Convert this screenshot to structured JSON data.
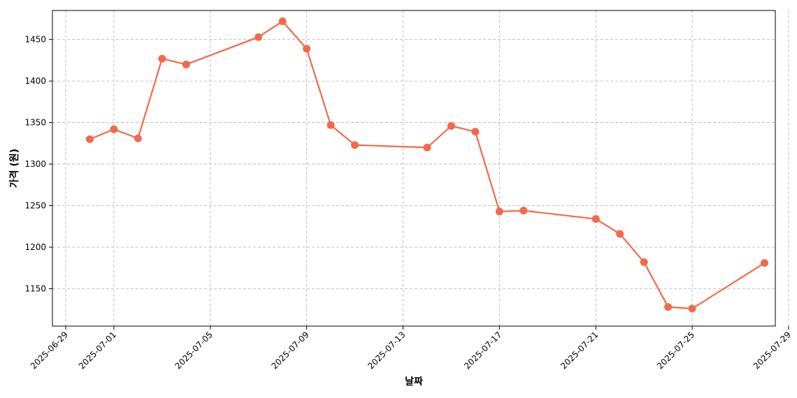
{
  "chart_data": {
    "type": "line",
    "xlabel": "날짜",
    "ylabel": "가격 (원)",
    "x_axis_type": "date",
    "xlim": [
      "2025-06-28",
      "2025-07-29"
    ],
    "ylim": [
      1105,
      1485
    ],
    "x_ticks": [
      "2025-06-29",
      "2025-07-01",
      "2025-07-05",
      "2025-07-09",
      "2025-07-13",
      "2025-07-17",
      "2025-07-21",
      "2025-07-25",
      "2025-07-29"
    ],
    "y_ticks": [
      1150,
      1200,
      1250,
      1300,
      1350,
      1400,
      1450
    ],
    "grid": true,
    "marker": "circle",
    "color": "#f4694a",
    "series": [
      {
        "x": [
          "2025-06-30",
          "2025-07-01",
          "2025-07-02",
          "2025-07-03",
          "2025-07-04",
          "2025-07-07",
          "2025-07-08",
          "2025-07-09",
          "2025-07-10",
          "2025-07-11",
          "2025-07-14",
          "2025-07-15",
          "2025-07-16",
          "2025-07-17",
          "2025-07-18",
          "2025-07-21",
          "2025-07-22",
          "2025-07-23",
          "2025-07-24",
          "2025-07-25",
          "2025-07-28"
        ],
        "y": [
          1330,
          1342,
          1331,
          1427,
          1420,
          1453,
          1472,
          1439,
          1347,
          1323,
          1320,
          1346,
          1339,
          1243,
          1244,
          1234,
          1216,
          1182,
          1128,
          1126,
          1181
        ]
      }
    ]
  }
}
